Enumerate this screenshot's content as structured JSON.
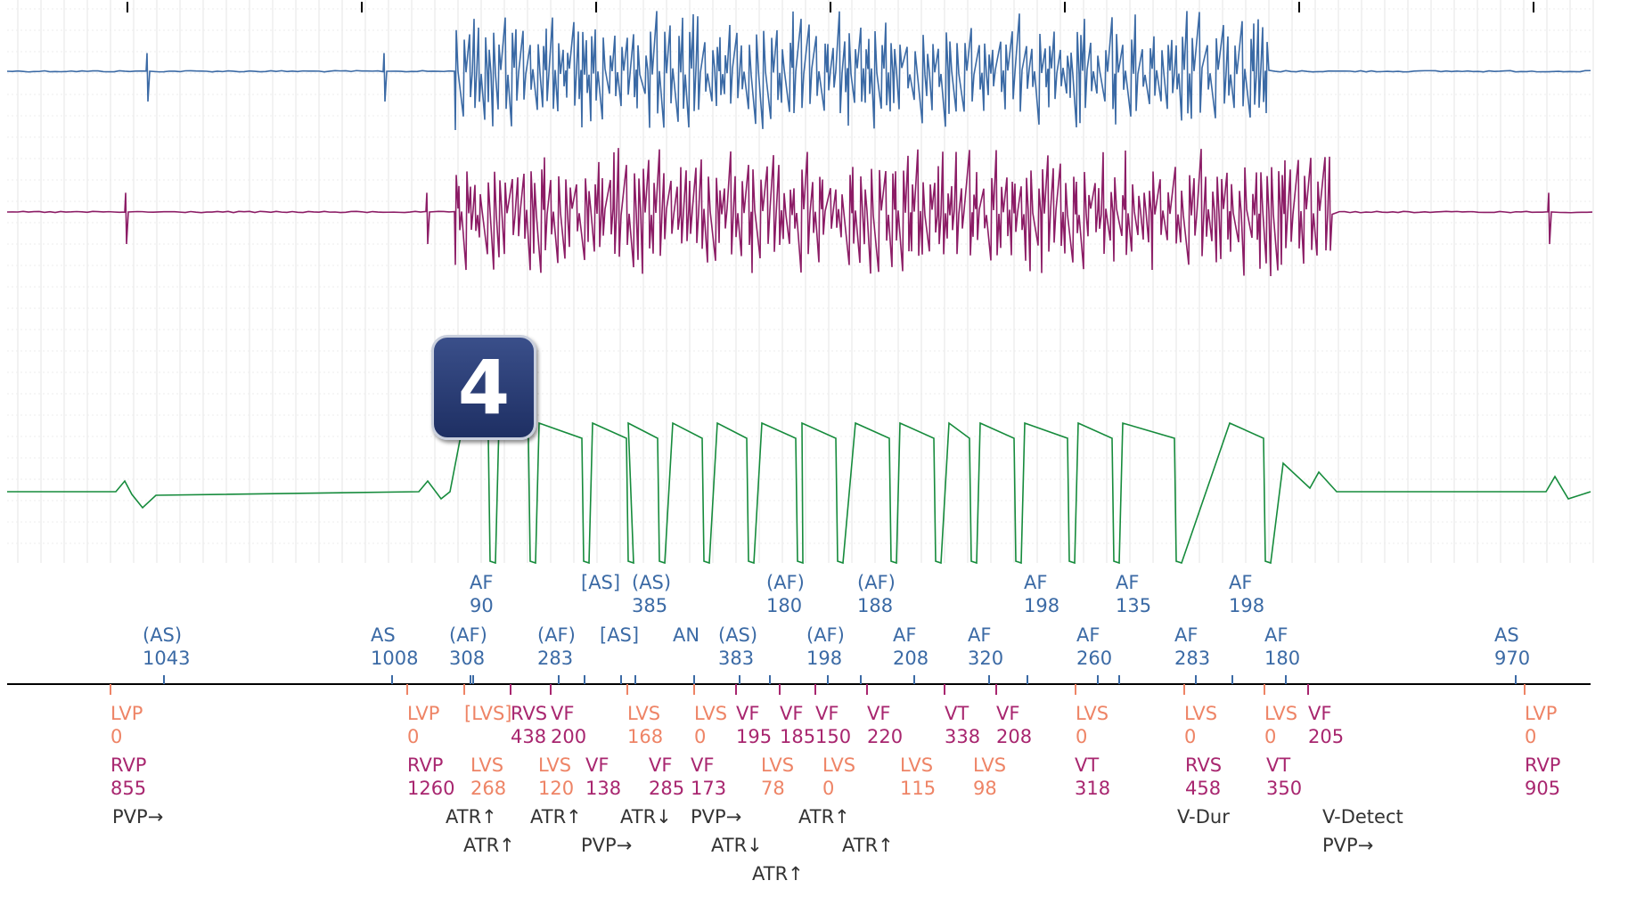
{
  "badge": {
    "number": "4"
  },
  "colors": {
    "atrial": "#3b6aa5",
    "ventricular": "#8c1d66",
    "lv_sense": "#ee8466",
    "ventricular_event": "#a8266f",
    "shock": "#168b3c",
    "marker_text": "#333333",
    "grid": "#cfcfcf"
  },
  "chart_data": {
    "type": "line",
    "series": [],
    "markers": {
      "atrial_row1": [
        {
          "t": 545,
          "label": "AF",
          "value": "90"
        },
        {
          "t": 670,
          "label": "[AS]",
          "value": ""
        },
        {
          "t": 727,
          "label": "(AS)",
          "value": "385"
        },
        {
          "t": 878,
          "label": "(AF)",
          "value": "180"
        },
        {
          "t": 980,
          "label": "(AF)",
          "value": "188"
        },
        {
          "t": 1167,
          "label": "AF",
          "value": "198"
        },
        {
          "t": 1270,
          "label": "AF",
          "value": "135"
        },
        {
          "t": 1397,
          "label": "AF",
          "value": "198"
        }
      ],
      "atrial_row2": [
        {
          "t": 184,
          "label": "(AS)",
          "value": "1043"
        },
        {
          "t": 440,
          "label": "AS",
          "value": "1008"
        },
        {
          "t": 528,
          "label": "(AF)",
          "value": "308"
        },
        {
          "t": 627,
          "label": "(AF)",
          "value": "283"
        },
        {
          "t": 697,
          "label": "[AS]",
          "value": ""
        },
        {
          "t": 779,
          "label": "AN",
          "value": ""
        },
        {
          "t": 830,
          "label": "(AS)",
          "value": "383"
        },
        {
          "t": 929,
          "label": "(AF)",
          "value": "198"
        },
        {
          "t": 1026,
          "label": "AF",
          "value": "208"
        },
        {
          "t": 1110,
          "label": "AF",
          "value": "320"
        },
        {
          "t": 1232,
          "label": "AF",
          "value": "260"
        },
        {
          "t": 1342,
          "label": "AF",
          "value": "283"
        },
        {
          "t": 1443,
          "label": "AF",
          "value": "180"
        },
        {
          "t": 1701,
          "label": "AS",
          "value": "970"
        }
      ],
      "ventricular_row1": [
        {
          "t": 146,
          "label": "LVP",
          "value": "0",
          "color": "lv"
        },
        {
          "t": 479,
          "label": "LVP",
          "value": "0",
          "color": "lv"
        },
        {
          "t": 543,
          "label": "[LVS]",
          "value": "",
          "color": "lv"
        },
        {
          "t": 595,
          "label": "RVS",
          "value": "438",
          "color": "v"
        },
        {
          "t": 640,
          "label": "VF",
          "value": "200",
          "color": "v"
        },
        {
          "t": 726,
          "label": "LVS",
          "value": "168",
          "color": "lv"
        },
        {
          "t": 801,
          "label": "LVS",
          "value": "0",
          "color": "lv"
        },
        {
          "t": 848,
          "label": "VF",
          "value": "195",
          "color": "v"
        },
        {
          "t": 897,
          "label": "VF",
          "value": "185",
          "color": "v"
        },
        {
          "t": 937,
          "label": "VF",
          "value": "150",
          "color": "v"
        },
        {
          "t": 995,
          "label": "VF",
          "value": "220",
          "color": "v"
        },
        {
          "t": 1082,
          "label": "VT",
          "value": "338",
          "color": "v"
        },
        {
          "t": 1140,
          "label": "VF",
          "value": "208",
          "color": "v"
        },
        {
          "t": 1229,
          "label": "LVS",
          "value": "0",
          "color": "lv"
        },
        {
          "t": 1351,
          "label": "LVS",
          "value": "0",
          "color": "lv"
        },
        {
          "t": 1441,
          "label": "LVS",
          "value": "0",
          "color": "lv"
        },
        {
          "t": 1490,
          "label": "VF",
          "value": "205",
          "color": "v"
        },
        {
          "t": 1733,
          "label": "LVP",
          "value": "0",
          "color": "lv"
        }
      ],
      "ventricular_row2": [
        {
          "t": 146,
          "label": "RVP",
          "value": "855",
          "color": "v"
        },
        {
          "t": 479,
          "label": "RVP",
          "value": "1260",
          "color": "v"
        },
        {
          "t": 550,
          "label": "LVS",
          "value": "268",
          "color": "lv"
        },
        {
          "t": 626,
          "label": "LVS",
          "value": "120",
          "color": "lv"
        },
        {
          "t": 679,
          "label": "VF",
          "value": "138",
          "color": "v"
        },
        {
          "t": 750,
          "label": "VF",
          "value": "285",
          "color": "v"
        },
        {
          "t": 797,
          "label": "VF",
          "value": "173",
          "color": "v"
        },
        {
          "t": 876,
          "label": "LVS",
          "value": "78",
          "color": "lv"
        },
        {
          "t": 945,
          "label": "LVS",
          "value": "0",
          "color": "lv"
        },
        {
          "t": 1032,
          "label": "LVS",
          "value": "115",
          "color": "lv"
        },
        {
          "t": 1114,
          "label": "LVS",
          "value": "98",
          "color": "lv"
        },
        {
          "t": 1228,
          "label": "VT",
          "value": "318",
          "color": "v"
        },
        {
          "t": 1352,
          "label": "RVS",
          "value": "458",
          "color": "v"
        },
        {
          "t": 1443,
          "label": "VT",
          "value": "350",
          "color": "v"
        },
        {
          "t": 1733,
          "label": "RVP",
          "value": "905",
          "color": "v"
        }
      ],
      "event_row1": [
        {
          "t": 168,
          "text": "PVP→"
        },
        {
          "t": 542,
          "text": "ATR↑"
        },
        {
          "t": 637,
          "text": "ATR↑"
        },
        {
          "t": 738,
          "text": "ATR↓"
        },
        {
          "t": 817,
          "text": "PVP→"
        },
        {
          "t": 938,
          "text": "ATR↑"
        },
        {
          "t": 1363,
          "text": "V-Dur"
        },
        {
          "t": 1526,
          "text": "V-Detect"
        }
      ],
      "event_row2": [
        {
          "t": 562,
          "text": "ATR↑"
        },
        {
          "t": 694,
          "text": "PVP→"
        },
        {
          "t": 840,
          "text": "ATR↓"
        },
        {
          "t": 987,
          "text": "ATR↑"
        },
        {
          "t": 1526,
          "text": "PVP→"
        }
      ],
      "event_row3": [
        {
          "t": 886,
          "text": "ATR↑"
        }
      ]
    }
  }
}
